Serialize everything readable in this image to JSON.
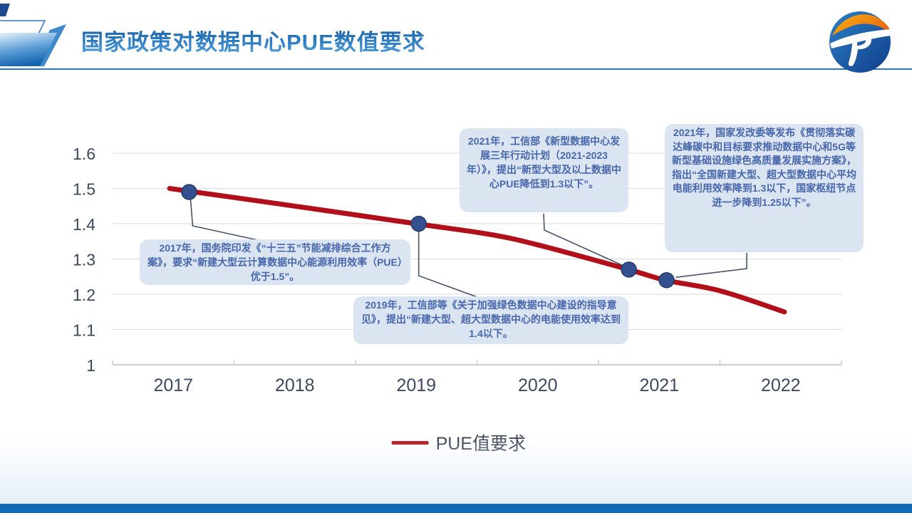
{
  "header": {
    "title": "国家政策对数据中心PUE数值要求"
  },
  "legend": {
    "label": "PUE值要求",
    "line_color": "#b1101a"
  },
  "callouts": {
    "y2017": {
      "text": "2017年，国务院印发《“十三五”节能减排综合工作方案》，要求“新建大型云计算数据中心能源利用效率（PUE）优于1.5”。"
    },
    "y2019": {
      "text": "2019年，工信部等《关于加强绿色数据中心建设的指导意见》，提出“新建大型、超大型数据中心的电能使用效率达到1.4以下。"
    },
    "miit2021": {
      "text": "2021年，工信部《新型数据中心发展三年行动计划（2021-2023年）》，提出“新型大型及以上数据中心PUE降低到1.3以下”。"
    },
    "ndrc2021": {
      "text": "2021年，国家发改委等发布《贯彻落实碳达峰碳中和目标要求推动数据中心和5G等新型基础设施绿色高质量发展实施方案》，指出“全国新建大型、超大型数据中心平均电能利用效率降到1.3以下，国家枢纽节点进一步降到1.25以下”。"
    }
  },
  "chart_data": {
    "type": "line",
    "title": "",
    "xlabel": "",
    "ylabel": "",
    "xlim": [
      2016.5,
      2022.5
    ],
    "ylim": [
      1.0,
      1.6
    ],
    "x_ticks": [
      2017,
      2018,
      2019,
      2020,
      2021,
      2022
    ],
    "y_ticks": [
      1,
      1.1,
      1.2,
      1.3,
      1.4,
      1.5,
      1.6
    ],
    "grid": true,
    "legend_position": "bottom",
    "series": [
      {
        "name": "PUE值要求",
        "color": "#b1101a",
        "points": [
          [
            2016.97,
            1.5
          ],
          [
            2018,
            1.45
          ],
          [
            2019,
            1.4
          ],
          [
            2019.6,
            1.37
          ],
          [
            2020,
            1.34
          ],
          [
            2020.75,
            1.27
          ],
          [
            2021.05,
            1.24
          ],
          [
            2021.5,
            1.21
          ],
          [
            2022.03,
            1.15
          ]
        ]
      }
    ],
    "markers": [
      {
        "year": 2017.13,
        "value": 1.49,
        "callout": "y2017",
        "marker_color": "#35508e"
      },
      {
        "year": 2019.02,
        "value": 1.4,
        "callout": "y2019",
        "marker_color": "#35508e"
      },
      {
        "year": 2020.75,
        "value": 1.27,
        "callout": "miit2021",
        "marker_color": "#35508e"
      },
      {
        "year": 2021.06,
        "value": 1.24,
        "callout": "ndrc2021",
        "marker_color": "#35508e"
      }
    ]
  }
}
